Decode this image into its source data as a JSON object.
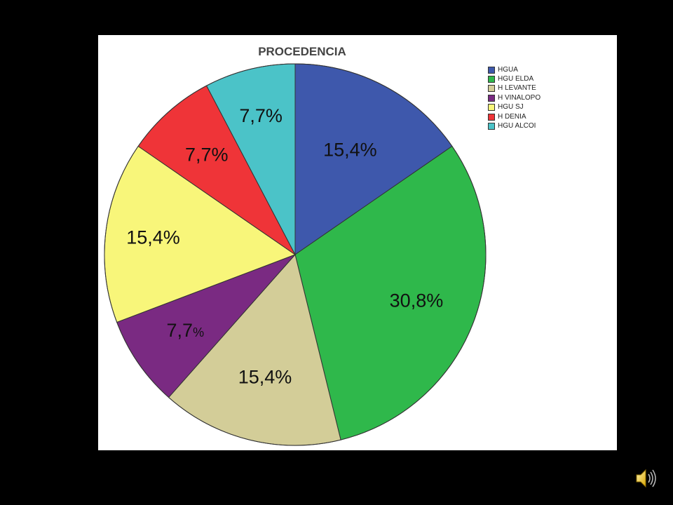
{
  "chart_data": {
    "type": "pie",
    "title": "PROCEDENCIA",
    "categories": [
      "HGUA",
      "HGU ELDA",
      "H LEVANTE",
      "H VINALOPO",
      "HGU SJ",
      "H DENIA",
      "HGU ALCOI"
    ],
    "values": [
      15.4,
      30.8,
      15.4,
      7.7,
      15.4,
      7.7,
      7.7
    ],
    "labels": [
      "15,4%",
      "30,8%",
      "15,4%",
      "7,7",
      "15,4%",
      "7,7%",
      "7,7%"
    ],
    "label_suffix_small": [
      "",
      "",
      "",
      "%",
      "",
      "",
      ""
    ],
    "colors": [
      "#3e58ac",
      "#2fb84b",
      "#d3cd98",
      "#7a2a82",
      "#f8f67a",
      "#ef3438",
      "#4bc3c8"
    ],
    "legend_placement": "top-right",
    "start_angle_deg": 0,
    "direction": "clockwise"
  },
  "audio": {
    "icon": "speaker-icon"
  }
}
